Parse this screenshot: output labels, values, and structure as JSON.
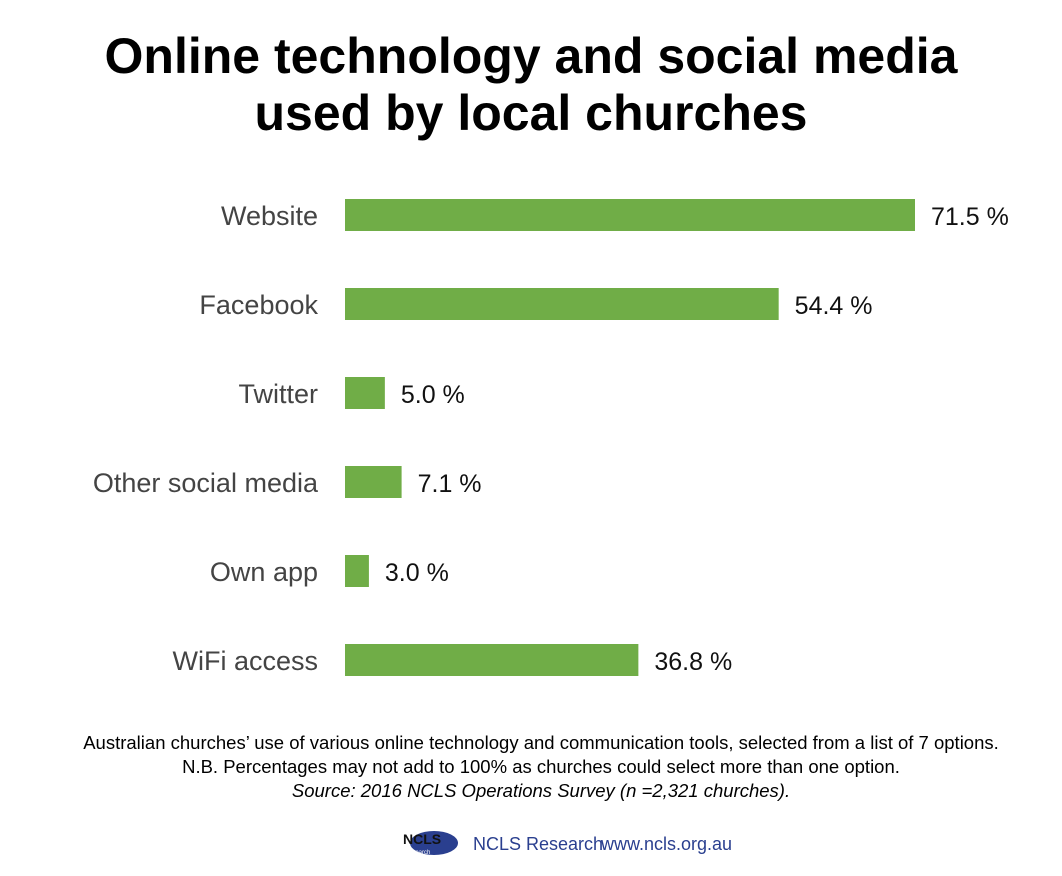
{
  "title": {
    "line1": "Online technology and social media",
    "line2": "used by local churches"
  },
  "chart_data": {
    "type": "bar",
    "orientation": "horizontal",
    "categories": [
      "Website",
      "Facebook",
      "Twitter",
      "Other social media",
      "Own app",
      "WiFi access"
    ],
    "values": [
      71.5,
      54.4,
      5.0,
      7.1,
      3.0,
      36.8
    ],
    "value_labels": [
      "71.5 %",
      "54.4 %",
      "5.0 %",
      "7.1 %",
      "3.0 %",
      "36.8 %"
    ],
    "xlim": [
      0,
      71.5
    ],
    "grid": false,
    "legend": "none",
    "bar_color": "#70ad47"
  },
  "notes": {
    "line1": "Australian churches’ use of various online technology and communication tools, selected from a list of 7 options.",
    "line2": "N.B. Percentages may not add to 100% as churches could select more than one option.",
    "source": "Source: 2016 NCLS Operations Survey (n =2,321 churches)."
  },
  "footer": {
    "logo_text": "NCLS",
    "logo_subtext": "research",
    "org_name": "NCLS Research",
    "website": "www.ncls.org.au",
    "brand_color": "#2a3f8f"
  }
}
